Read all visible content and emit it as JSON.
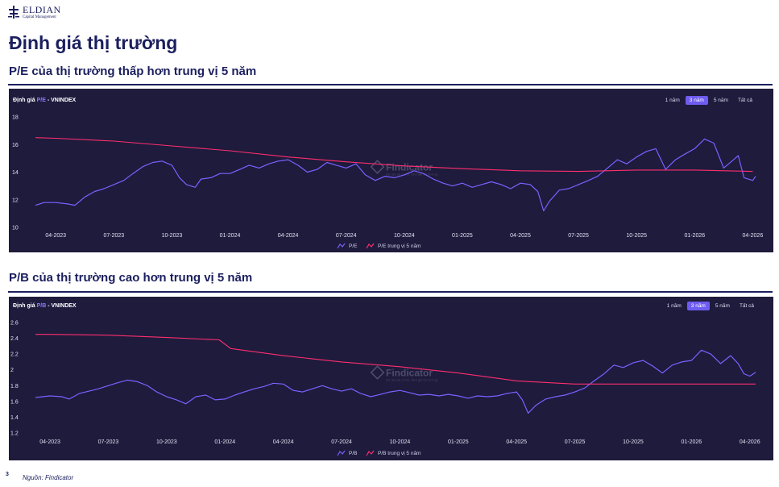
{
  "logo": {
    "name": "ELDIAN",
    "sub": "Capital Management"
  },
  "page_title": "Định giá thị trường",
  "sections": [
    {
      "title": "P/E của thị trường thấp hơn trung vị 5 năm"
    },
    {
      "title": "P/B của thị trường cao hơn trung vị 5 năm"
    }
  ],
  "watermark": {
    "name": "Findicator",
    "tagline": "Dữ liệu tài chính, định giá thị trường"
  },
  "colors": {
    "series": "#7b61ff",
    "median": "#ff2e6d",
    "panel_bg": "#1e1b3d",
    "heading": "#1b1f5e"
  },
  "chart_data": [
    {
      "type": "line",
      "label_prefix": "Định giá",
      "label_metric": "P/E",
      "label_suffix": "- VNINDEX",
      "range_buttons": [
        "1 năm",
        "3 năm",
        "5 năm",
        "Tất cả"
      ],
      "active_range": "3 năm",
      "x_ticks": [
        "04-2023",
        "07-2023",
        "10-2023",
        "01-2024",
        "04-2024",
        "07-2024",
        "10-2024",
        "01-2025",
        "04-2025",
        "07-2025",
        "10-2025",
        "01-2026",
        "04-2026"
      ],
      "y_ticks": [
        "18",
        "16",
        "14",
        "12",
        "10"
      ],
      "ylim": [
        10,
        18
      ],
      "xlim": [
        -0.35,
        12.05
      ],
      "legend": [
        "P/E",
        "P/E trung vị 5 năm"
      ],
      "series": [
        {
          "name": "P/E",
          "points": [
            [
              -0.35,
              11.6
            ],
            [
              -0.2,
              11.8
            ],
            [
              0,
              11.8
            ],
            [
              0.2,
              11.7
            ],
            [
              0.33,
              11.6
            ],
            [
              0.5,
              12.2
            ],
            [
              0.67,
              12.6
            ],
            [
              0.83,
              12.8
            ],
            [
              1,
              13.1
            ],
            [
              1.17,
              13.4
            ],
            [
              1.33,
              13.9
            ],
            [
              1.5,
              14.4
            ],
            [
              1.67,
              14.7
            ],
            [
              1.83,
              14.8
            ],
            [
              2,
              14.5
            ],
            [
              2.13,
              13.6
            ],
            [
              2.25,
              13.1
            ],
            [
              2.4,
              12.9
            ],
            [
              2.5,
              13.5
            ],
            [
              2.67,
              13.6
            ],
            [
              2.83,
              13.9
            ],
            [
              3,
              13.9
            ],
            [
              3.17,
              14.2
            ],
            [
              3.33,
              14.5
            ],
            [
              3.5,
              14.3
            ],
            [
              3.67,
              14.6
            ],
            [
              3.83,
              14.8
            ],
            [
              4,
              14.9
            ],
            [
              4.17,
              14.5
            ],
            [
              4.33,
              14.0
            ],
            [
              4.5,
              14.2
            ],
            [
              4.67,
              14.7
            ],
            [
              4.83,
              14.5
            ],
            [
              5,
              14.3
            ],
            [
              5.17,
              14.6
            ],
            [
              5.33,
              13.8
            ],
            [
              5.5,
              13.4
            ],
            [
              5.67,
              13.7
            ],
            [
              5.83,
              13.6
            ],
            [
              6,
              13.8
            ],
            [
              6.17,
              14.1
            ],
            [
              6.33,
              13.9
            ],
            [
              6.5,
              13.5
            ],
            [
              6.67,
              13.2
            ],
            [
              6.83,
              13.0
            ],
            [
              7,
              13.2
            ],
            [
              7.17,
              12.9
            ],
            [
              7.33,
              13.1
            ],
            [
              7.5,
              13.3
            ],
            [
              7.67,
              13.1
            ],
            [
              7.83,
              12.8
            ],
            [
              8,
              13.2
            ],
            [
              8.17,
              13.1
            ],
            [
              8.3,
              12.6
            ],
            [
              8.4,
              11.2
            ],
            [
              8.5,
              11.9
            ],
            [
              8.67,
              12.7
            ],
            [
              8.83,
              12.8
            ],
            [
              9,
              13.1
            ],
            [
              9.17,
              13.4
            ],
            [
              9.33,
              13.7
            ],
            [
              9.5,
              14.3
            ],
            [
              9.67,
              14.9
            ],
            [
              9.83,
              14.6
            ],
            [
              10,
              15.1
            ],
            [
              10.17,
              15.5
            ],
            [
              10.33,
              15.7
            ],
            [
              10.5,
              14.2
            ],
            [
              10.67,
              14.9
            ],
            [
              10.83,
              15.3
            ],
            [
              11,
              15.7
            ],
            [
              11.17,
              16.4
            ],
            [
              11.33,
              16.1
            ],
            [
              11.5,
              14.3
            ],
            [
              11.67,
              14.9
            ],
            [
              11.75,
              15.2
            ],
            [
              11.85,
              13.6
            ],
            [
              12,
              13.4
            ],
            [
              12.05,
              13.7
            ]
          ]
        },
        {
          "name": "P/E trung vị 5 năm",
          "points": [
            [
              -0.35,
              16.5
            ],
            [
              0,
              16.45
            ],
            [
              1,
              16.25
            ],
            [
              2,
              15.9
            ],
            [
              3,
              15.55
            ],
            [
              4,
              15.1
            ],
            [
              5,
              14.75
            ],
            [
              6,
              14.45
            ],
            [
              7,
              14.25
            ],
            [
              8,
              14.1
            ],
            [
              9,
              14.05
            ],
            [
              10,
              14.15
            ],
            [
              11,
              14.15
            ],
            [
              12,
              14.05
            ]
          ]
        }
      ]
    },
    {
      "type": "line",
      "label_prefix": "Định giá",
      "label_metric": "P/B",
      "label_suffix": "- VNINDEX",
      "range_buttons": [
        "1 năm",
        "3 năm",
        "5 năm",
        "Tất cả"
      ],
      "active_range": "3 năm",
      "x_ticks": [
        "04-2023",
        "07-2023",
        "10-2023",
        "01-2024",
        "04-2024",
        "07-2024",
        "10-2024",
        "01-2025",
        "04-2025",
        "07-2025",
        "10-2025",
        "01-2026",
        "04-2026"
      ],
      "y_ticks": [
        "2.6",
        "2.4",
        "2.2",
        "2",
        "1.8",
        "1.6",
        "1.4",
        "1.2"
      ],
      "ylim": [
        1.2,
        2.6
      ],
      "xlim": [
        -0.25,
        12.1
      ],
      "legend": [
        "P/B",
        "P/B trung vị 5 năm"
      ],
      "series": [
        {
          "name": "P/B",
          "points": [
            [
              -0.25,
              1.65
            ],
            [
              0,
              1.67
            ],
            [
              0.2,
              1.66
            ],
            [
              0.33,
              1.63
            ],
            [
              0.5,
              1.7
            ],
            [
              0.67,
              1.73
            ],
            [
              0.83,
              1.76
            ],
            [
              1,
              1.8
            ],
            [
              1.17,
              1.84
            ],
            [
              1.33,
              1.87
            ],
            [
              1.5,
              1.85
            ],
            [
              1.67,
              1.8
            ],
            [
              1.83,
              1.72
            ],
            [
              2,
              1.66
            ],
            [
              2.17,
              1.62
            ],
            [
              2.33,
              1.57
            ],
            [
              2.5,
              1.66
            ],
            [
              2.67,
              1.68
            ],
            [
              2.83,
              1.62
            ],
            [
              3,
              1.63
            ],
            [
              3.17,
              1.68
            ],
            [
              3.33,
              1.72
            ],
            [
              3.5,
              1.76
            ],
            [
              3.67,
              1.79
            ],
            [
              3.83,
              1.83
            ],
            [
              4,
              1.82
            ],
            [
              4.17,
              1.74
            ],
            [
              4.33,
              1.72
            ],
            [
              4.5,
              1.76
            ],
            [
              4.67,
              1.8
            ],
            [
              4.83,
              1.76
            ],
            [
              5,
              1.73
            ],
            [
              5.17,
              1.76
            ],
            [
              5.33,
              1.7
            ],
            [
              5.5,
              1.66
            ],
            [
              5.67,
              1.69
            ],
            [
              5.83,
              1.72
            ],
            [
              6,
              1.74
            ],
            [
              6.17,
              1.71
            ],
            [
              6.33,
              1.68
            ],
            [
              6.5,
              1.69
            ],
            [
              6.67,
              1.67
            ],
            [
              6.83,
              1.69
            ],
            [
              7,
              1.67
            ],
            [
              7.17,
              1.64
            ],
            [
              7.33,
              1.67
            ],
            [
              7.5,
              1.66
            ],
            [
              7.67,
              1.67
            ],
            [
              7.83,
              1.7
            ],
            [
              8,
              1.72
            ],
            [
              8.1,
              1.62
            ],
            [
              8.2,
              1.45
            ],
            [
              8.33,
              1.55
            ],
            [
              8.5,
              1.63
            ],
            [
              8.67,
              1.66
            ],
            [
              8.83,
              1.68
            ],
            [
              9,
              1.72
            ],
            [
              9.17,
              1.77
            ],
            [
              9.33,
              1.86
            ],
            [
              9.5,
              1.95
            ],
            [
              9.67,
              2.06
            ],
            [
              9.83,
              2.03
            ],
            [
              10,
              2.09
            ],
            [
              10.17,
              2.12
            ],
            [
              10.33,
              2.05
            ],
            [
              10.5,
              1.96
            ],
            [
              10.67,
              2.06
            ],
            [
              10.83,
              2.1
            ],
            [
              11,
              2.12
            ],
            [
              11.17,
              2.25
            ],
            [
              11.33,
              2.2
            ],
            [
              11.5,
              2.08
            ],
            [
              11.67,
              2.18
            ],
            [
              11.8,
              2.08
            ],
            [
              11.9,
              1.95
            ],
            [
              12,
              1.92
            ],
            [
              12.1,
              1.97
            ]
          ]
        },
        {
          "name": "P/B trung vị 5 năm",
          "points": [
            [
              -0.25,
              2.45
            ],
            [
              0,
              2.45
            ],
            [
              1,
              2.44
            ],
            [
              2,
              2.41
            ],
            [
              2.9,
              2.38
            ],
            [
              3.1,
              2.27
            ],
            [
              4,
              2.18
            ],
            [
              5,
              2.1
            ],
            [
              6,
              2.04
            ],
            [
              7,
              1.96
            ],
            [
              8,
              1.86
            ],
            [
              9,
              1.82
            ],
            [
              10,
              1.82
            ],
            [
              11,
              1.82
            ],
            [
              12.1,
              1.82
            ]
          ]
        }
      ]
    }
  ],
  "page_number": "3",
  "source": "Nguồn: Findicator"
}
